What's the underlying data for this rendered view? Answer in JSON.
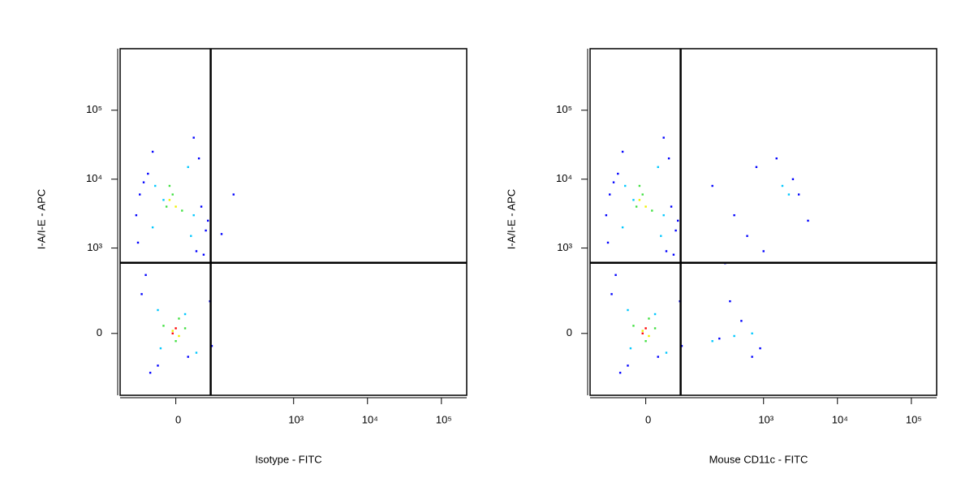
{
  "chart_data": [
    {
      "type": "scatter",
      "xscale": "biexponential",
      "yscale": "biexponential",
      "x_label": "Isotype - FITC",
      "y_label": "I-A/I-E - APC",
      "xlim": [
        -140,
        220000
      ],
      "ylim": [
        -450,
        780000
      ],
      "xticks": [
        0,
        {
          "value": 1000,
          "label": "10³"
        },
        {
          "value": 10000,
          "label": "10⁴"
        },
        {
          "value": 100000,
          "label": "10⁵"
        }
      ],
      "yticks": [
        0,
        {
          "value": 1000,
          "label": "10³"
        },
        {
          "value": 10000,
          "label": "10⁴"
        },
        {
          "value": 100000,
          "label": "10⁵"
        }
      ],
      "quadrant_gate": {
        "x": 67,
        "y": 609
      },
      "series": [
        {
          "color": "#0000ff",
          "x": [
            -80,
            -50,
            40,
            60,
            -70,
            55,
            -60,
            30,
            -40,
            45,
            -75,
            50,
            -55,
            35,
            -30,
            65,
            -45,
            20,
            -65,
            70,
            150,
            100
          ],
          "y": [
            3000,
            12000,
            20000,
            2500,
            6000,
            1800,
            9000,
            40000,
            25000,
            4000,
            1200,
            800,
            400,
            900,
            -150,
            150,
            -200,
            -100,
            200,
            -50,
            6000,
            1600
          ]
        },
        {
          "color": "#00c8ff",
          "x": [
            -40,
            -20,
            20,
            30,
            -35,
            25,
            -25,
            15,
            -30,
            35
          ],
          "y": [
            2000,
            5000,
            15000,
            3000,
            8000,
            1500,
            -60,
            80,
            100,
            -80
          ]
        },
        {
          "color": "#40e040",
          "x": [
            -15,
            -5,
            10,
            -10,
            5,
            0,
            -20,
            15
          ],
          "y": [
            4000,
            6000,
            3500,
            8000,
            60,
            -30,
            30,
            20
          ]
        },
        {
          "color": "#f0f000",
          "x": [
            -10,
            0,
            -5,
            5
          ],
          "y": [
            5000,
            4000,
            10,
            -10
          ]
        },
        {
          "color": "#ff0000",
          "x": [
            -5,
            0
          ],
          "y": [
            0,
            20
          ]
        }
      ]
    },
    {
      "type": "scatter",
      "xscale": "biexponential",
      "yscale": "biexponential",
      "x_label": "Mouse CD11c - FITC",
      "y_label": "I-A/I-E - APC",
      "xlim": [
        -140,
        220000
      ],
      "ylim": [
        -450,
        780000
      ],
      "xticks": [
        0,
        {
          "value": 1000,
          "label": "10³"
        },
        {
          "value": 10000,
          "label": "10⁴"
        },
        {
          "value": 100000,
          "label": "10⁵"
        }
      ],
      "yticks": [
        0,
        {
          "value": 1000,
          "label": "10³"
        },
        {
          "value": 10000,
          "label": "10⁴"
        },
        {
          "value": 100000,
          "label": "10⁵"
        }
      ],
      "quadrant_gate": {
        "x": 67,
        "y": 609
      },
      "series": [
        {
          "color": "#0000ff",
          "x": [
            -80,
            -50,
            40,
            60,
            -70,
            55,
            -60,
            30,
            -40,
            45,
            -75,
            50,
            -55,
            35,
            -30,
            65,
            -45,
            20,
            -65,
            70,
            200,
            400,
            800,
            1500,
            3000,
            2500,
            600,
            300,
            1000,
            250,
            500,
            900,
            350,
            700,
            4000
          ],
          "y": [
            3000,
            12000,
            20000,
            2500,
            6000,
            1800,
            9000,
            40000,
            25000,
            4000,
            1200,
            800,
            400,
            900,
            -150,
            150,
            -200,
            -100,
            200,
            -50,
            8000,
            3000,
            15000,
            20000,
            6000,
            10000,
            1500,
            600,
            900,
            -20,
            50,
            -60,
            150,
            -100,
            2500
          ]
        },
        {
          "color": "#00c8ff",
          "x": [
            -40,
            -20,
            20,
            30,
            -35,
            25,
            -25,
            15,
            -30,
            35,
            1800,
            2200,
            200,
            400,
            700
          ],
          "y": [
            2000,
            5000,
            15000,
            3000,
            8000,
            1500,
            -60,
            80,
            100,
            -80,
            8000,
            6000,
            -30,
            -10,
            0
          ]
        },
        {
          "color": "#40e040",
          "x": [
            -15,
            -5,
            10,
            -10,
            5,
            0,
            -20,
            15
          ],
          "y": [
            4000,
            6000,
            3500,
            8000,
            60,
            -30,
            30,
            20
          ]
        },
        {
          "color": "#f0f000",
          "x": [
            -10,
            0,
            -5,
            5
          ],
          "y": [
            5000,
            4000,
            10,
            -10
          ]
        },
        {
          "color": "#ff0000",
          "x": [
            -5,
            0
          ],
          "y": [
            0,
            20
          ]
        }
      ]
    }
  ]
}
